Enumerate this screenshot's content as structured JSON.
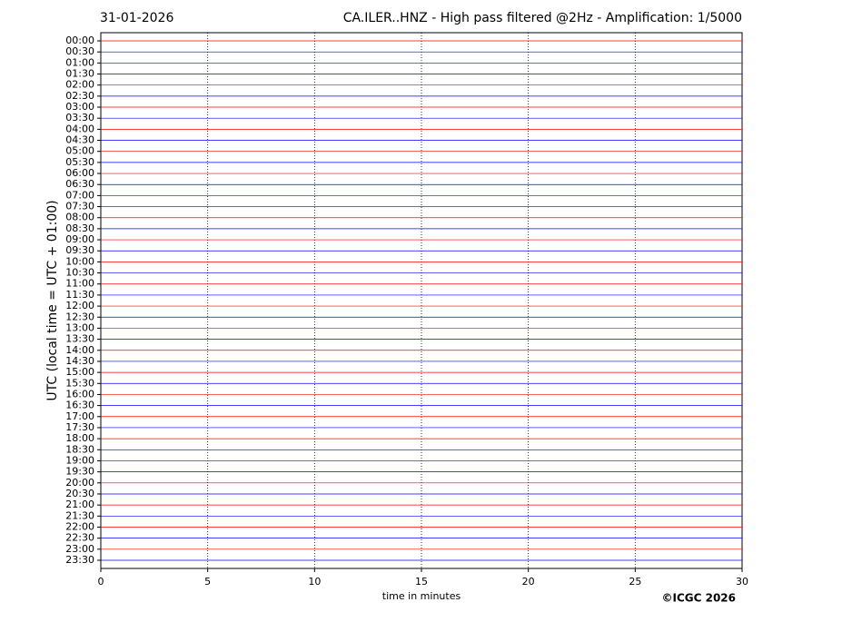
{
  "chart_data": {
    "type": "helicorder",
    "date": "31-01-2026",
    "title": "CA.ILER..HNZ - High pass filtered @2Hz - Amplification: 1/5000",
    "ylabel": "UTC (local time = UTC + 01:00)",
    "xlabel": "time in minutes",
    "copyright": "©ICGC 2026",
    "categories": [
      "00:00",
      "00:30",
      "01:00",
      "01:30",
      "02:00",
      "02:30",
      "03:00",
      "03:30",
      "04:00",
      "04:30",
      "05:00",
      "05:30",
      "06:00",
      "06:30",
      "07:00",
      "07:30",
      "08:00",
      "08:30",
      "09:00",
      "09:30",
      "10:00",
      "10:30",
      "11:00",
      "11:30",
      "12:00",
      "12:30",
      "13:00",
      "13:30",
      "14:00",
      "14:30",
      "15:00",
      "15:30",
      "16:00",
      "16:30",
      "17:00",
      "17:30",
      "18:00",
      "18:30",
      "19:00",
      "19:30",
      "20:00",
      "20:30",
      "21:00",
      "21:30",
      "22:00",
      "22:30",
      "23:00",
      "23:30"
    ],
    "trace_colors": [
      "#ff0000",
      "#0000ff"
    ],
    "xlim": [
      0,
      30
    ],
    "xticks": [
      0,
      5,
      10,
      15,
      20,
      25,
      30
    ],
    "grid": true
  }
}
